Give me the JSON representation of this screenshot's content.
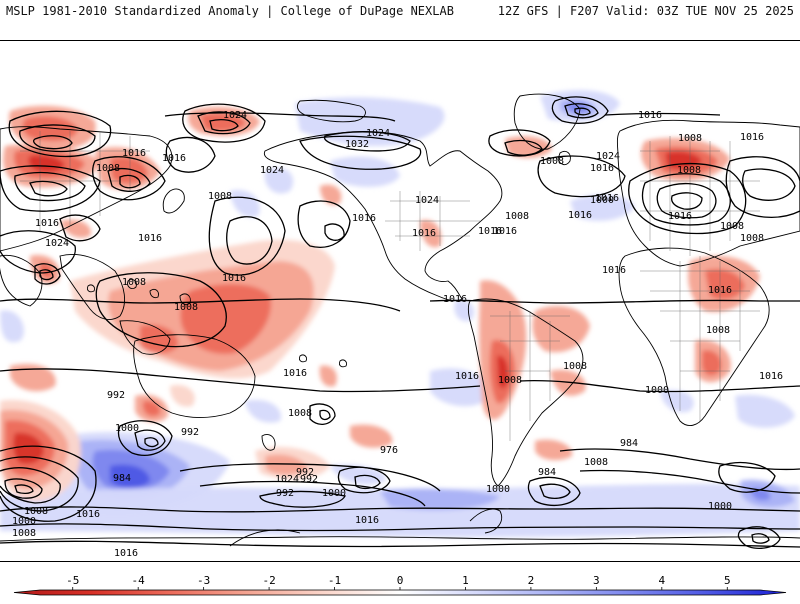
{
  "header": {
    "left": "MSLP 1981-2010 Standardized Anomaly | College of DuPage NEXLAB",
    "right": "12Z GFS | F207 Valid: 03Z TUE NOV 25 2025"
  },
  "colors": {
    "neg5": "#b31a1a",
    "neg4": "#d73027",
    "neg3": "#ec6a5a",
    "neg2": "#f4a391",
    "neg1": "#fbd5ca",
    "zero": "#ffffff",
    "pos1": "#d5d9fb",
    "pos2": "#a9b1f5",
    "pos3": "#7c86ee",
    "pos4": "#4d57e4",
    "pos5": "#1a1fd4",
    "contour": "#000000",
    "coast": "#000000",
    "border": "#666666"
  },
  "colorbar": {
    "ticks": [
      "-5",
      "-4",
      "-3",
      "-2",
      "-1",
      "0",
      "1",
      "2",
      "3",
      "4",
      "5"
    ]
  },
  "isobars": {
    "labels": [
      "1024",
      "1024",
      "1016",
      "1032",
      "1016",
      "1008",
      "1024",
      "1016",
      "1008",
      "1016",
      "1024",
      "1016",
      "1008",
      "1016",
      "1024",
      "1008",
      "1016",
      "1008",
      "1016",
      "1016",
      "1016",
      "1000",
      "1008",
      "1024",
      "1016",
      "1016",
      "1016",
      "1016",
      "1008",
      "1008",
      "1016",
      "1016",
      "1008",
      "1008",
      "1016",
      "1016",
      "1008",
      "1008",
      "1016",
      "1016",
      "1016",
      "1000",
      "1008",
      "992",
      "1008",
      "1000",
      "992",
      "976",
      "984",
      "992",
      "1008",
      "984",
      "992",
      "984",
      "1024",
      "992",
      "1000",
      "1000",
      "1000",
      "1008",
      "1000",
      "1016",
      "1016",
      "1008",
      "1016"
    ]
  }
}
